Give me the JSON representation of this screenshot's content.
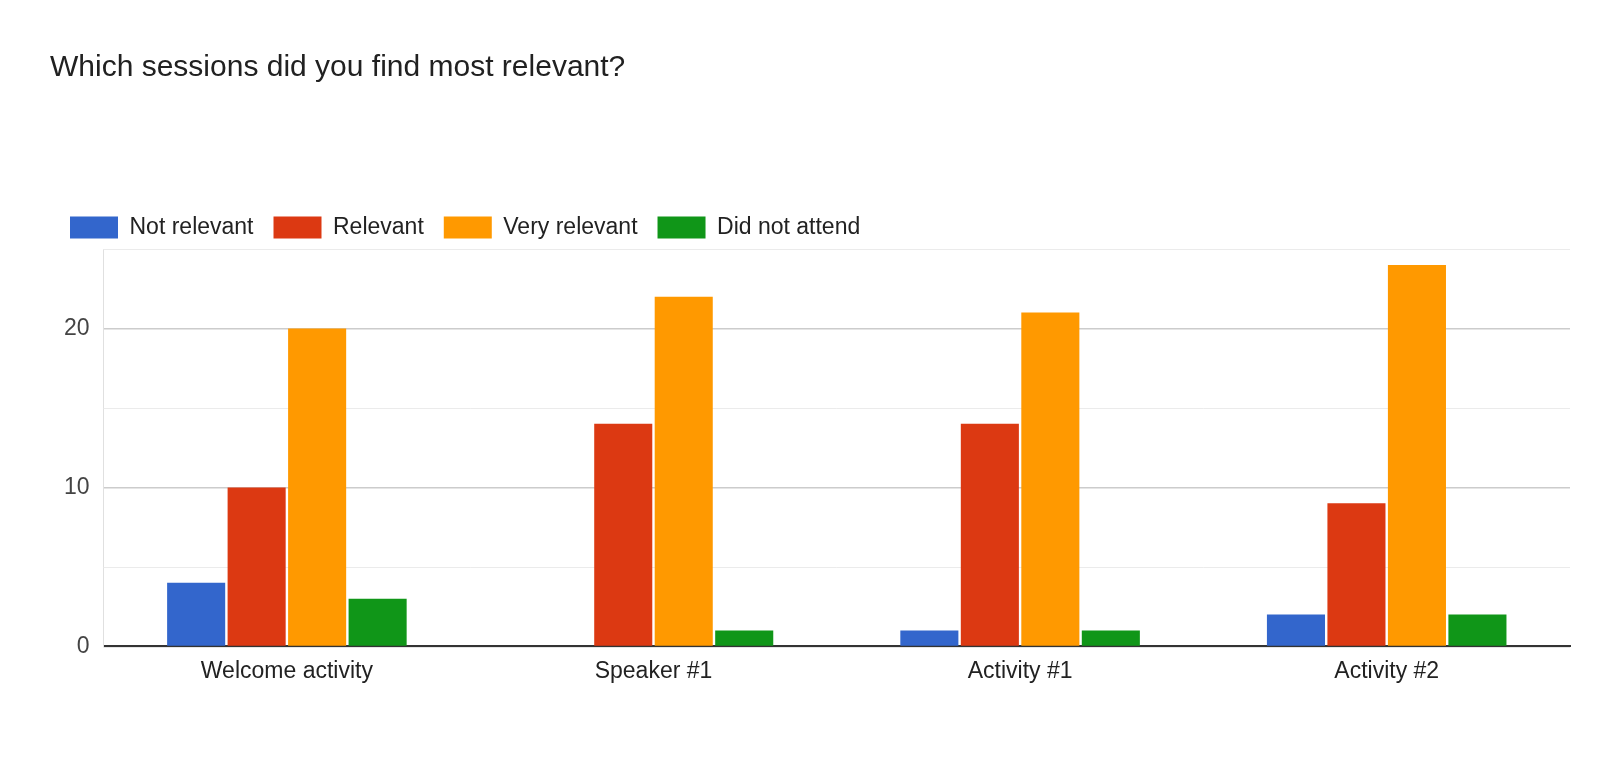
{
  "chart_data": {
    "type": "bar",
    "title": "Which sessions did you find most relevant?",
    "categories": [
      "Welcome activity",
      "Speaker #1",
      "Activity #1",
      "Activity #2"
    ],
    "series": [
      {
        "name": "Not relevant",
        "color": "#3366cc",
        "values": [
          4,
          0,
          1,
          2
        ]
      },
      {
        "name": "Relevant",
        "color": "#dc3912",
        "values": [
          10,
          14,
          14,
          9
        ]
      },
      {
        "name": "Very relevant",
        "color": "#ff9900",
        "values": [
          20,
          22,
          21,
          24
        ]
      },
      {
        "name": "Did not attend",
        "color": "#109618",
        "values": [
          3,
          1,
          1,
          2
        ]
      }
    ],
    "ylim": [
      0,
      25
    ],
    "yticks": [
      0,
      10,
      20
    ],
    "grid": true,
    "legend": "top-left"
  }
}
